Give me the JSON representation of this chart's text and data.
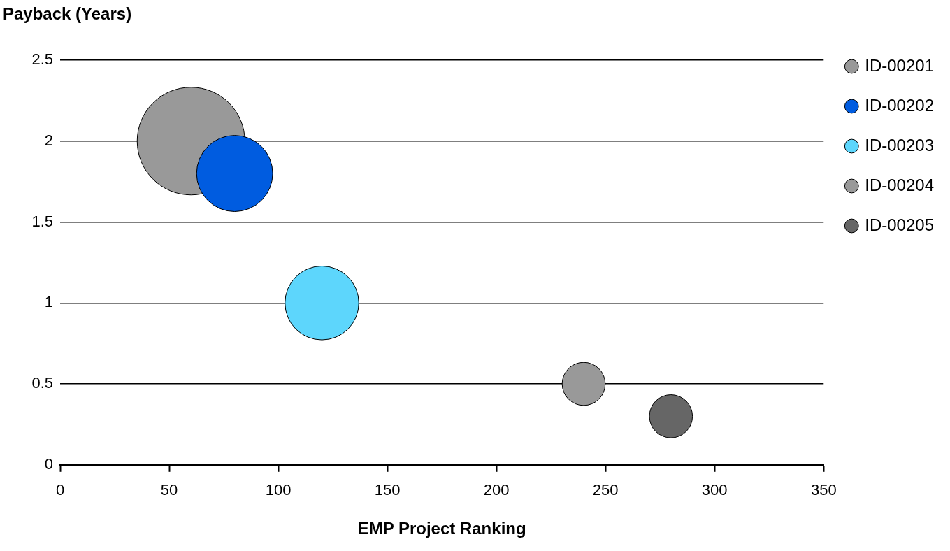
{
  "chart_data": {
    "type": "bubble",
    "ylabel": "Payback (Years)",
    "xlabel": "EMP Project Ranking",
    "xlim": [
      0,
      350
    ],
    "xticks": [
      0,
      50,
      100,
      150,
      200,
      250,
      300,
      350
    ],
    "ylim": [
      0,
      2.5
    ],
    "yticks": [
      0,
      0.5,
      1,
      1.5,
      2,
      2.5
    ],
    "grid": "y",
    "legend": "right",
    "series": [
      {
        "name": "ID-00201",
        "color": "#999999",
        "x": [
          60
        ],
        "values": [
          2
        ],
        "sizes": [
          1
        ]
      },
      {
        "name": "ID-00202",
        "color": "#005ce0",
        "x": [
          80
        ],
        "values": [
          1.8
        ],
        "sizes": [
          0.5
        ]
      },
      {
        "name": "ID-00203",
        "color": "#5dd6fc",
        "x": [
          120
        ],
        "values": [
          1
        ],
        "sizes": [
          0.47
        ]
      },
      {
        "name": "ID-00204",
        "color": "#999999",
        "x": [
          240
        ],
        "values": [
          0.5
        ],
        "sizes": [
          0.16
        ]
      },
      {
        "name": "ID-00205",
        "color": "#666666",
        "x": [
          280
        ],
        "values": [
          0.3
        ],
        "sizes": [
          0.16
        ]
      }
    ]
  }
}
